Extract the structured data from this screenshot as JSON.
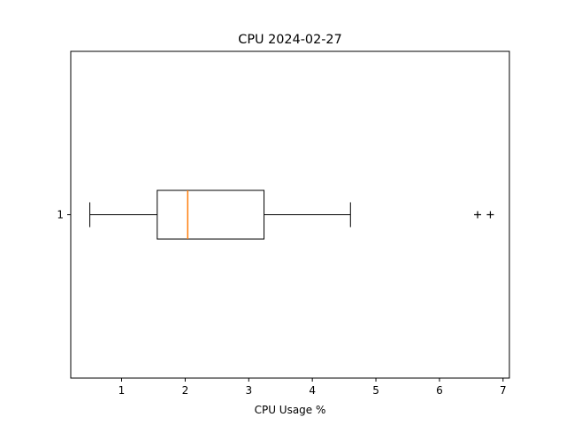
{
  "chart_data": {
    "type": "boxplot",
    "orientation": "horizontal",
    "title": "CPU 2024-02-27",
    "xlabel": "CPU Usage %",
    "ylabel": "",
    "xlim": [
      0.2,
      7.1
    ],
    "x_ticks": [
      1,
      2,
      3,
      4,
      5,
      6,
      7
    ],
    "y_ticks": [
      "1"
    ],
    "grid": false,
    "series": [
      {
        "category": "1",
        "whisker_low": 0.5,
        "q1": 1.56,
        "median": 2.04,
        "q3": 3.24,
        "whisker_high": 4.6,
        "outliers": [
          6.6,
          6.8
        ]
      }
    ],
    "colors": {
      "box": "#000000",
      "median": "#ff7f0e",
      "outlier": "#000000"
    },
    "outlier_marker": "+"
  }
}
